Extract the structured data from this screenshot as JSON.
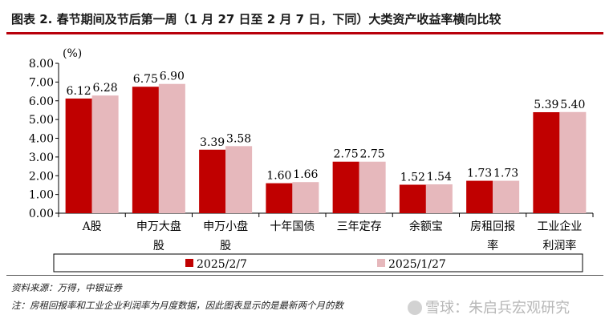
{
  "title": "图表 2. 春节期间及节后第一周（1 月 27 日至 2 月 7 日，下同）大类资产收益率横向比较",
  "chart_data": {
    "type": "bar",
    "unit_label": "(%)",
    "categories": [
      [
        "A股"
      ],
      [
        "申万大盘",
        "股"
      ],
      [
        "申万小盘",
        "股"
      ],
      [
        "十年国债"
      ],
      [
        "三年定存"
      ],
      [
        "余额宝"
      ],
      [
        "房租回报",
        "率"
      ],
      [
        "工业企业",
        "利润率"
      ]
    ],
    "series": [
      {
        "name": "2025/2/7",
        "color": "#c00000",
        "values": [
          6.12,
          6.75,
          3.39,
          1.6,
          2.75,
          1.52,
          1.73,
          5.39
        ]
      },
      {
        "name": "2025/1/27",
        "color": "#e6b8bc",
        "values": [
          6.28,
          6.9,
          3.58,
          1.66,
          2.75,
          1.54,
          1.73,
          5.4
        ]
      }
    ],
    "value_labels": [
      [
        "6.12",
        "6.75",
        "3.39",
        "1.60",
        "2.75",
        "1.52",
        "1.73",
        "5.39"
      ],
      [
        "6.28",
        "6.90",
        "3.58",
        "1.66",
        "2.75",
        "1.54",
        "1.73",
        "5.40"
      ]
    ],
    "ylim": [
      0,
      8
    ],
    "yticks": [
      "0.00",
      "1.00",
      "2.00",
      "3.00",
      "4.00",
      "5.00",
      "6.00",
      "7.00",
      "8.00"
    ],
    "grid": false,
    "legend_position": "bottom"
  },
  "footnotes": {
    "source": "资料来源：万得，中银证券",
    "note": "注：房租回报率和工业企业利润率为月度数据，因此图表显示的是最新两个月的数"
  },
  "watermark": "雪球：朱启兵宏观研究"
}
